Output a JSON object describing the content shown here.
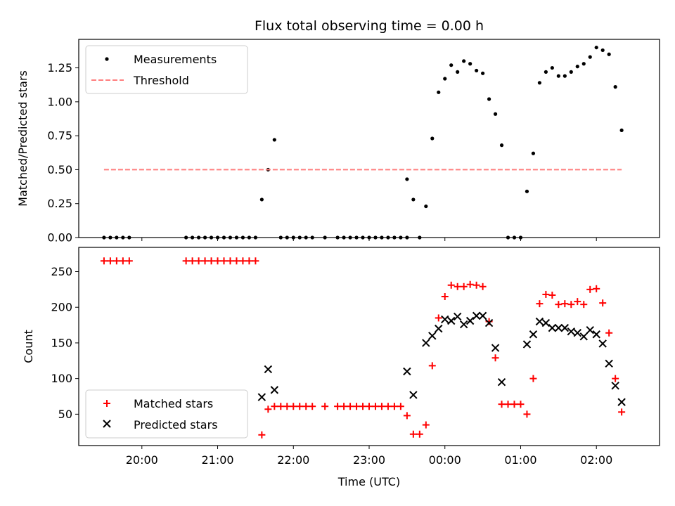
{
  "chart_data": [
    {
      "type": "scatter",
      "title": "Flux total observing time = 0.00 h",
      "xlabel": "",
      "ylabel": "Matched/Predicted stars",
      "ylim": [
        0,
        1.46
      ],
      "xlim": [
        "19:10",
        "02:50"
      ],
      "yticks": [
        0.0,
        0.25,
        0.5,
        0.75,
        1.0,
        1.25
      ],
      "ytick_labels": [
        "0.00",
        "0.25",
        "0.50",
        "0.75",
        "1.00",
        "1.25"
      ],
      "xticks": [
        "20:00",
        "21:00",
        "22:00",
        "23:00",
        "00:00",
        "01:00",
        "02:00"
      ],
      "legend": "top-left",
      "grid": false,
      "series": [
        {
          "name": "Measurements",
          "kind": "scatter",
          "marker": "dot",
          "color": "#000000",
          "points": [
            [
              "19:30",
              0
            ],
            [
              "19:35",
              0
            ],
            [
              "19:40",
              0
            ],
            [
              "19:45",
              0
            ],
            [
              "19:50",
              0
            ],
            [
              "20:35",
              0
            ],
            [
              "20:40",
              0
            ],
            [
              "20:45",
              0
            ],
            [
              "20:50",
              0
            ],
            [
              "20:55",
              0
            ],
            [
              "21:00",
              0
            ],
            [
              "21:05",
              0
            ],
            [
              "21:10",
              0
            ],
            [
              "21:15",
              0
            ],
            [
              "21:20",
              0
            ],
            [
              "21:25",
              0
            ],
            [
              "21:30",
              0
            ],
            [
              "21:35",
              0.28
            ],
            [
              "21:40",
              0.5
            ],
            [
              "21:45",
              0.72
            ],
            [
              "21:50",
              0
            ],
            [
              "21:55",
              0
            ],
            [
              "22:00",
              0
            ],
            [
              "22:05",
              0
            ],
            [
              "22:10",
              0
            ],
            [
              "22:15",
              0
            ],
            [
              "22:25",
              0
            ],
            [
              "22:35",
              0
            ],
            [
              "22:40",
              0
            ],
            [
              "22:45",
              0
            ],
            [
              "22:50",
              0
            ],
            [
              "22:55",
              0
            ],
            [
              "23:00",
              0
            ],
            [
              "23:05",
              0
            ],
            [
              "23:10",
              0
            ],
            [
              "23:15",
              0
            ],
            [
              "23:20",
              0
            ],
            [
              "23:25",
              0
            ],
            [
              "23:30",
              0
            ],
            [
              "23:30",
              0.43
            ],
            [
              "23:35",
              0.28
            ],
            [
              "23:40",
              0
            ],
            [
              "23:45",
              0.23
            ],
            [
              "23:50",
              0.73
            ],
            [
              "23:55",
              1.07
            ],
            [
              "00:00",
              1.17
            ],
            [
              "00:05",
              1.27
            ],
            [
              "00:10",
              1.22
            ],
            [
              "00:15",
              1.3
            ],
            [
              "00:20",
              1.28
            ],
            [
              "00:25",
              1.23
            ],
            [
              "00:30",
              1.21
            ],
            [
              "00:35",
              1.02
            ],
            [
              "00:40",
              0.91
            ],
            [
              "00:45",
              0.68
            ],
            [
              "00:50",
              0
            ],
            [
              "00:55",
              0
            ],
            [
              "01:00",
              0
            ],
            [
              "01:05",
              0.34
            ],
            [
              "01:10",
              0.62
            ],
            [
              "01:15",
              1.14
            ],
            [
              "01:20",
              1.22
            ],
            [
              "01:25",
              1.25
            ],
            [
              "01:30",
              1.19
            ],
            [
              "01:35",
              1.19
            ],
            [
              "01:40",
              1.22
            ],
            [
              "01:45",
              1.26
            ],
            [
              "01:50",
              1.28
            ],
            [
              "01:55",
              1.33
            ],
            [
              "02:00",
              1.4
            ],
            [
              "02:05",
              1.38
            ],
            [
              "02:10",
              1.35
            ],
            [
              "02:15",
              1.11
            ],
            [
              "02:20",
              0.79
            ]
          ]
        },
        {
          "name": "Threshold",
          "kind": "dashed-line",
          "color": "#ff7f7f",
          "points": [
            [
              "19:30",
              0.5
            ],
            [
              "02:20",
              0.5
            ]
          ]
        }
      ]
    },
    {
      "type": "scatter",
      "title": "",
      "xlabel": "Time (UTC)",
      "ylabel": "Count",
      "ylim": [
        6,
        284
      ],
      "xlim": [
        "19:10",
        "02:50"
      ],
      "yticks": [
        50,
        100,
        150,
        200,
        250
      ],
      "ytick_labels": [
        "50",
        "100",
        "150",
        "200",
        "250"
      ],
      "xticks": [
        "20:00",
        "21:00",
        "22:00",
        "23:00",
        "00:00",
        "01:00",
        "02:00"
      ],
      "legend": "bottom-left",
      "grid": false,
      "series": [
        {
          "name": "Matched stars",
          "kind": "scatter",
          "marker": "plus",
          "color": "#ff0000",
          "points": [
            [
              "19:30",
              265
            ],
            [
              "19:35",
              265
            ],
            [
              "19:40",
              265
            ],
            [
              "19:45",
              265
            ],
            [
              "19:50",
              265
            ],
            [
              "20:35",
              265
            ],
            [
              "20:40",
              265
            ],
            [
              "20:45",
              265
            ],
            [
              "20:50",
              265
            ],
            [
              "20:55",
              265
            ],
            [
              "21:00",
              265
            ],
            [
              "21:05",
              265
            ],
            [
              "21:10",
              265
            ],
            [
              "21:15",
              265
            ],
            [
              "21:20",
              265
            ],
            [
              "21:25",
              265
            ],
            [
              "21:30",
              265
            ],
            [
              "21:35",
              21
            ],
            [
              "21:40",
              57
            ],
            [
              "21:45",
              61
            ],
            [
              "21:50",
              61
            ],
            [
              "21:55",
              61
            ],
            [
              "22:00",
              61
            ],
            [
              "22:05",
              61
            ],
            [
              "22:10",
              61
            ],
            [
              "22:15",
              61
            ],
            [
              "22:25",
              61
            ],
            [
              "22:35",
              61
            ],
            [
              "22:40",
              61
            ],
            [
              "22:45",
              61
            ],
            [
              "22:50",
              61
            ],
            [
              "22:55",
              61
            ],
            [
              "23:00",
              61
            ],
            [
              "23:05",
              61
            ],
            [
              "23:10",
              61
            ],
            [
              "23:15",
              61
            ],
            [
              "23:20",
              61
            ],
            [
              "23:25",
              61
            ],
            [
              "23:30",
              48
            ],
            [
              "23:35",
              22
            ],
            [
              "23:40",
              22
            ],
            [
              "23:45",
              35
            ],
            [
              "23:50",
              118
            ],
            [
              "23:55",
              185
            ],
            [
              "00:00",
              215
            ],
            [
              "00:05",
              231
            ],
            [
              "00:10",
              229
            ],
            [
              "00:15",
              229
            ],
            [
              "00:20",
              232
            ],
            [
              "00:25",
              231
            ],
            [
              "00:30",
              229
            ],
            [
              "00:35",
              180
            ],
            [
              "00:40",
              129
            ],
            [
              "00:45",
              64
            ],
            [
              "00:50",
              64
            ],
            [
              "00:55",
              64
            ],
            [
              "01:00",
              64
            ],
            [
              "01:05",
              50
            ],
            [
              "01:10",
              100
            ],
            [
              "01:15",
              205
            ],
            [
              "01:20",
              218
            ],
            [
              "01:25",
              217
            ],
            [
              "01:30",
              204
            ],
            [
              "01:35",
              205
            ],
            [
              "01:40",
              204
            ],
            [
              "01:45",
              208
            ],
            [
              "01:50",
              204
            ],
            [
              "01:55",
              225
            ],
            [
              "02:00",
              226
            ],
            [
              "02:05",
              206
            ],
            [
              "02:10",
              164
            ],
            [
              "02:15",
              100
            ],
            [
              "02:20",
              53
            ]
          ]
        },
        {
          "name": "Predicted stars",
          "kind": "scatter",
          "marker": "x",
          "color": "#000000",
          "points": [
            [
              "21:35",
              74
            ],
            [
              "21:40",
              113
            ],
            [
              "21:45",
              84
            ],
            [
              "23:30",
              110
            ],
            [
              "23:35",
              77
            ],
            [
              "23:45",
              150
            ],
            [
              "23:50",
              160
            ],
            [
              "23:55",
              170
            ],
            [
              "00:00",
              183
            ],
            [
              "00:05",
              181
            ],
            [
              "00:10",
              187
            ],
            [
              "00:15",
              176
            ],
            [
              "00:20",
              181
            ],
            [
              "00:25",
              188
            ],
            [
              "00:30",
              188
            ],
            [
              "00:35",
              178
            ],
            [
              "00:40",
              143
            ],
            [
              "00:45",
              95
            ],
            [
              "01:05",
              148
            ],
            [
              "01:10",
              162
            ],
            [
              "01:15",
              180
            ],
            [
              "01:20",
              178
            ],
            [
              "01:25",
              171
            ],
            [
              "01:30",
              171
            ],
            [
              "01:35",
              171
            ],
            [
              "01:40",
              166
            ],
            [
              "01:45",
              164
            ],
            [
              "01:50",
              159
            ],
            [
              "01:55",
              168
            ],
            [
              "02:00",
              162
            ],
            [
              "02:05",
              149
            ],
            [
              "02:10",
              121
            ],
            [
              "02:15",
              90
            ],
            [
              "02:20",
              67
            ]
          ]
        }
      ]
    }
  ]
}
